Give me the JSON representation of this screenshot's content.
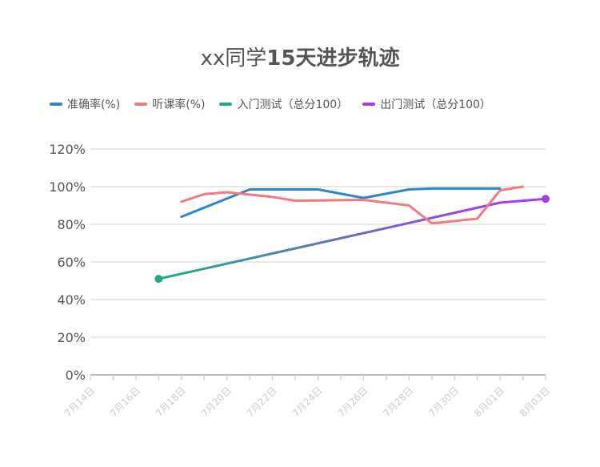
{
  "chart_data": {
    "type": "line",
    "title": "xx同学15天进步轨迹",
    "title_plain": "xx同学",
    "title_bold": "15天进步轨迹",
    "x_ticks": [
      "7月14日",
      "7月16日",
      "7月18日",
      "7月20日",
      "7月22日",
      "7月24日",
      "7月26日",
      "7月28日",
      "7月30日",
      "8月01日",
      "8月03日"
    ],
    "y_ticks": [
      "0%",
      "20%",
      "40%",
      "60%",
      "80%",
      "100%",
      "120%"
    ],
    "ylim": [
      0,
      120
    ],
    "xlim_days": [
      "2023-07-14",
      "2023-08-03"
    ],
    "grid": true,
    "legend_position": "top",
    "series": [
      {
        "name": "准确率(%)",
        "color": "#2E86C8",
        "points": [
          [
            "07-18",
            84
          ],
          [
            "07-21",
            98.5
          ],
          [
            "07-24",
            98.5
          ],
          [
            "07-26",
            94
          ],
          [
            "07-28",
            98.5
          ],
          [
            "07-29",
            99
          ],
          [
            "08-01",
            99
          ]
        ]
      },
      {
        "name": "听课率(%)",
        "color": "#F07B80",
        "points": [
          [
            "07-18",
            92
          ],
          [
            "07-19",
            96
          ],
          [
            "07-20",
            97
          ],
          [
            "07-22",
            94.5
          ],
          [
            "07-23",
            92.5
          ],
          [
            "07-26",
            93
          ],
          [
            "07-28",
            90
          ],
          [
            "07-29",
            80.5
          ],
          [
            "07-31",
            83
          ],
          [
            "08-01",
            98
          ],
          [
            "08-02",
            100
          ]
        ]
      },
      {
        "name": "入门测试（总分100）",
        "color": "#1BAE86",
        "points": [
          [
            "07-17",
            51
          ]
        ]
      },
      {
        "name": "出门测试（总分100）",
        "color": "#A43BF0",
        "points": [
          [
            "08-01",
            91.5
          ],
          [
            "08-02",
            92.5
          ],
          [
            "08-03",
            93.5
          ]
        ]
      }
    ],
    "trend_line": {
      "from": [
        "07-17",
        51
      ],
      "to": [
        "08-01",
        91.5
      ],
      "color_start": "#1BAE86",
      "color_end": "#A43BF0"
    }
  }
}
